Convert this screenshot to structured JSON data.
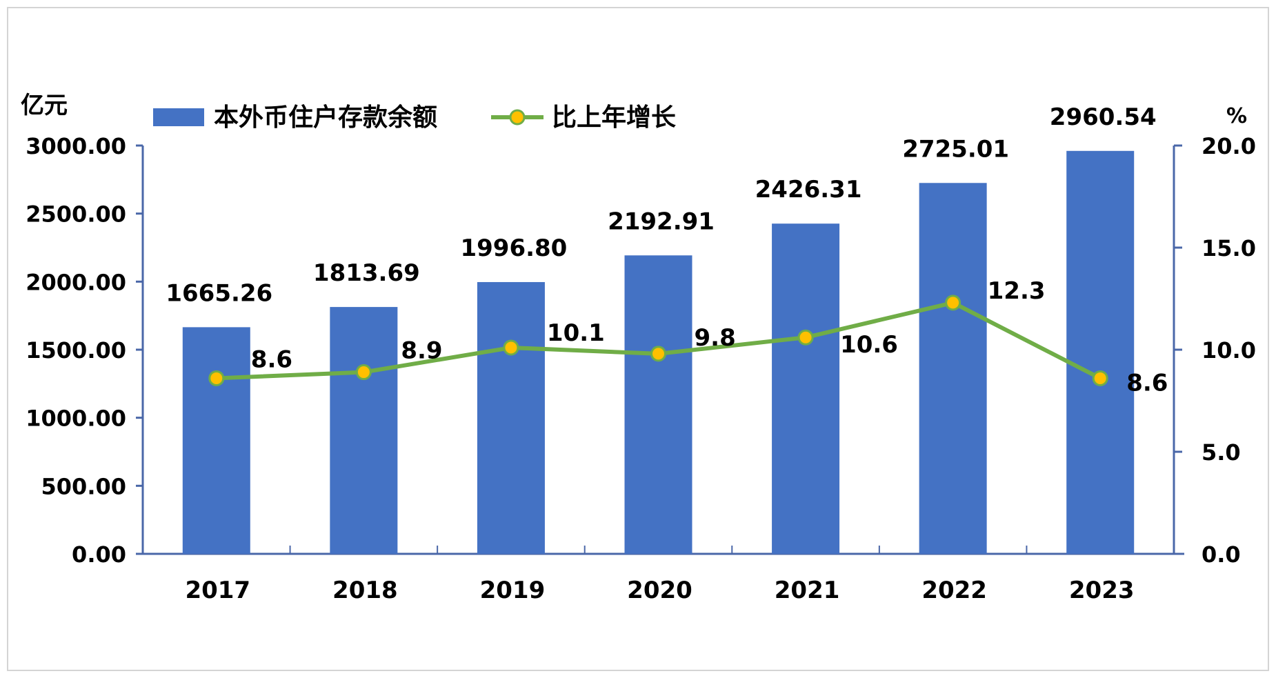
{
  "colors": {
    "bar": "#4472C4",
    "line": "#70AD47",
    "marker": "#FFC000",
    "axis": "#4a67a8",
    "text": "#000000",
    "frame": "#d4d4d4"
  },
  "chart_data": {
    "type": "bar",
    "categories": [
      "2017",
      "2018",
      "2019",
      "2020",
      "2021",
      "2022",
      "2023"
    ],
    "series": [
      {
        "name": "本外币住户存款余额",
        "type": "bar",
        "axis": "left",
        "values": [
          1665.26,
          1813.69,
          1996.8,
          2192.91,
          2426.31,
          2725.01,
          2960.54
        ],
        "labels": [
          "1665.26",
          "1813.69",
          "1996.80",
          "2192.91",
          "2426.31",
          "2725.01",
          "2960.54"
        ]
      },
      {
        "name": "比上年增长",
        "type": "line",
        "axis": "right",
        "values": [
          8.6,
          8.9,
          10.1,
          9.8,
          10.6,
          12.3,
          8.6
        ],
        "labels": [
          "8.6",
          "8.9",
          "10.1",
          "9.8",
          "10.6",
          "12.3",
          "8.6"
        ]
      }
    ],
    "ylabel_left": "亿元",
    "ylabel_right": "%",
    "ylim_left": [
      0,
      3000
    ],
    "ylim_right": [
      0,
      20
    ],
    "yticks_left": [
      "0.00",
      "500.00",
      "1000.00",
      "1500.00",
      "2000.00",
      "2500.00",
      "3000.00"
    ],
    "yticks_right": [
      "0.0",
      "5.0",
      "10.0",
      "15.0",
      "20.0"
    ],
    "legend_position": "top-left",
    "grid": false
  }
}
